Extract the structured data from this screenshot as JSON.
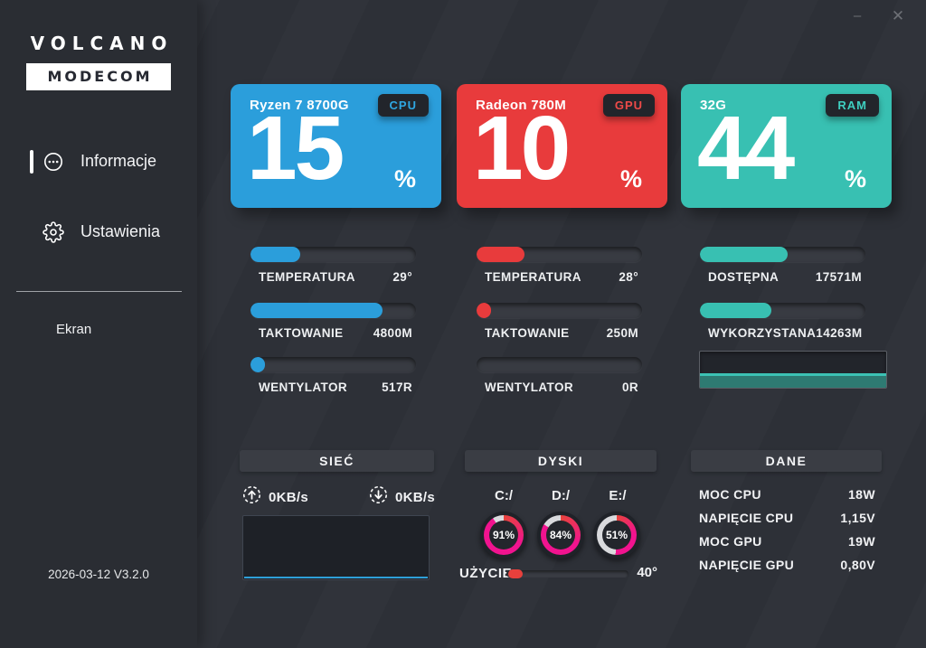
{
  "window": {
    "minimize_label": "–",
    "close_label": "✕"
  },
  "sidebar": {
    "logo_line1": "VOLCANO",
    "logo_line2": "MODECOM",
    "menu": [
      {
        "label": "Informacje"
      },
      {
        "label": "Ustawienia"
      }
    ],
    "screen_label": "Ekran",
    "version": "2026-03-12 V3.2.0"
  },
  "cards": [
    {
      "title": "Ryzen 7 8700G",
      "badge": "CPU",
      "value": "15",
      "unit": "%",
      "color": "#2b9edb",
      "badge_text_color": "#2fa7e2"
    },
    {
      "title": "Radeon 780M",
      "badge": "GPU",
      "value": "10",
      "unit": "%",
      "color": "#e83b3c",
      "badge_text_color": "#ee4a48"
    },
    {
      "title": "32G",
      "badge": "RAM",
      "value": "44",
      "unit": "%",
      "color": "#38c0b2",
      "badge_text_color": "#3ecfc0"
    }
  ],
  "meters": {
    "cpu": {
      "accent": "#2b9edb",
      "bars": [
        {
          "label": "TEMPERATURA",
          "value": "29°",
          "percent": 30
        },
        {
          "label": "TAKTOWANIE",
          "value": "4800M",
          "percent": 80
        },
        {
          "label": "WENTYLATOR",
          "value": "517R",
          "percent": 9
        }
      ]
    },
    "gpu": {
      "accent": "#e83b3c",
      "bars": [
        {
          "label": "TEMPERATURA",
          "value": "28°",
          "percent": 29
        },
        {
          "label": "TAKTOWANIE",
          "value": "250M",
          "percent": 9
        },
        {
          "label": "WENTYLATOR",
          "value": "0R",
          "percent": 0
        }
      ]
    },
    "ram": {
      "accent": "#38c0b2",
      "graph_line_color": "#3cc2b4",
      "graph_fill_color": "#2e7a72",
      "bars": [
        {
          "label": "DOSTĘPNA",
          "value": "17571M",
          "percent": 53
        },
        {
          "label": "WYKORZYSTANA",
          "value": "14263M",
          "percent": 43
        }
      ]
    }
  },
  "network": {
    "title": "SIEĆ",
    "upload_value": "0KB/s",
    "download_value": "0KB/s",
    "graph_line_color": "#2e9fd8"
  },
  "disks": {
    "title": "DYSKI",
    "items": [
      {
        "label": "C:/",
        "percent": 91,
        "text": "91%"
      },
      {
        "label": "D:/",
        "percent": 84,
        "text": "84%"
      },
      {
        "label": "E:/",
        "percent": 51,
        "text": "51%"
      }
    ],
    "ring_colors": {
      "start": "#e8443c",
      "main": "#f1138f",
      "rest": "#d9dadd"
    },
    "usage_label": "UŻYCIE",
    "usage_value": "40°"
  },
  "data_panel": {
    "title": "DANE",
    "rows": [
      {
        "label": "MOC CPU",
        "value": "18W"
      },
      {
        "label": "NAPIĘCIE CPU",
        "value": "1,15V"
      },
      {
        "label": "MOC GPU",
        "value": "19W"
      },
      {
        "label": "NAPIĘCIE GPU",
        "value": "0,80V"
      }
    ]
  }
}
